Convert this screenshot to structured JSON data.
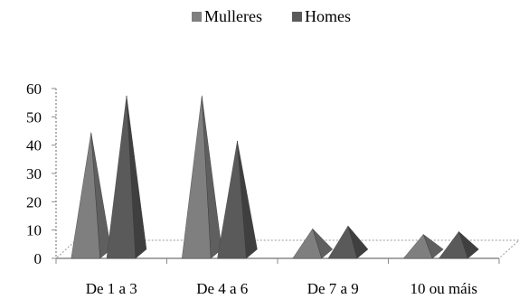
{
  "chart_data": {
    "type": "bar",
    "subtype": "3d-pyramid",
    "categories": [
      "De 1 a 3",
      "De 4 a 6",
      "De 7 a 9",
      "10 ou máis"
    ],
    "series": [
      {
        "name": "Mulleres",
        "values": [
          40,
          53,
          6,
          4
        ],
        "color": "#7f7f7f"
      },
      {
        "name": "Homes",
        "values": [
          53,
          37,
          7,
          5
        ],
        "color": "#5a5a5a"
      }
    ],
    "ylim": [
      0,
      60
    ],
    "yticks": [
      0,
      10,
      20,
      30,
      40,
      50,
      60
    ],
    "grid": false,
    "legend_position": "top"
  }
}
